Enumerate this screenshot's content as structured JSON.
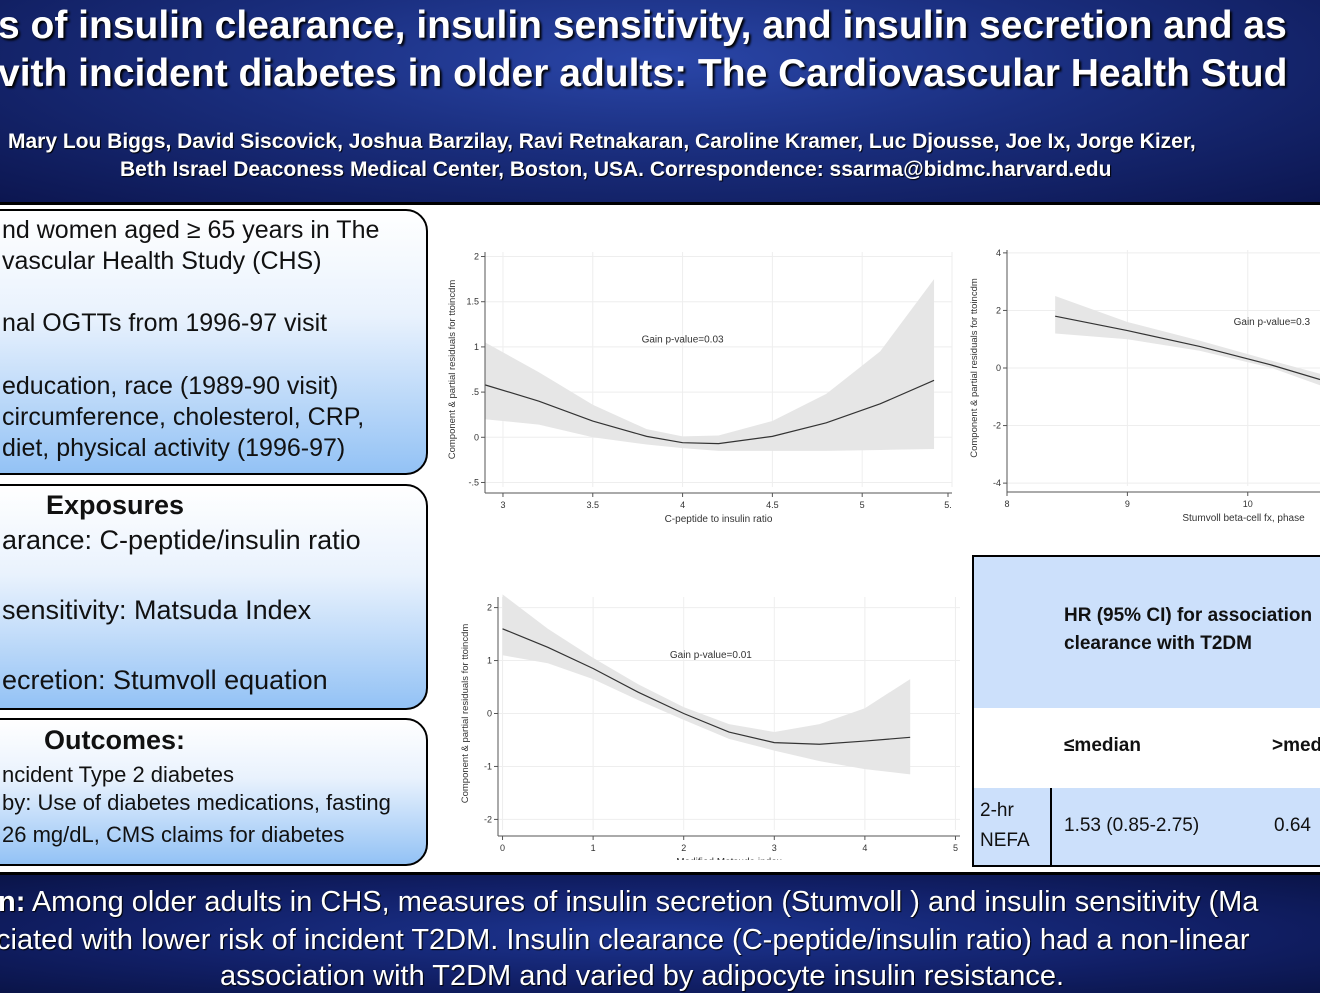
{
  "header": {
    "title_line1": "s of insulin clearance, insulin sensitivity, and insulin secretion and as",
    "title_line2": "vith incident diabetes in older adults: The Cardiovascular Health Stud",
    "authors": "Mary Lou Biggs, David Siscovick, Joshua Barzilay, Ravi Retnakaran, Caroline Kramer, Luc Djousse, Joe Ix, Jorge Kizer,",
    "affiliation": "Beth Israel Deaconess Medical Center, Boston, USA. Correspondence: ssarma@bidmc.harvard.edu"
  },
  "box1": {
    "lines": [
      "nd women aged ≥ 65 years in The",
      "vascular Health Study (CHS)",
      "nal OGTTs from 1996-97 visit",
      "education, race (1989-90 visit)",
      "circumference, cholesterol, CRP,",
      "diet, physical activity (1996-97)"
    ]
  },
  "box2": {
    "heading": "Exposures",
    "lines": [
      "arance: C-peptide/insulin ratio",
      "sensitivity: Matsuda Index",
      "ecretion: Stumvoll equation"
    ]
  },
  "box3": {
    "heading": "Outcomes:",
    "lines": [
      "ncident Type 2 diabetes",
      "by: Use of diabetes medications, fasting",
      "26 mg/dL, CMS claims for diabetes"
    ]
  },
  "chart_data": [
    {
      "type": "line",
      "xlabel": "C-peptide to insulin ratio",
      "ylabel": "Component & partial residuals for ttoincdm",
      "annotation": "Gain p-value=0.03",
      "x_ticks": [
        "3",
        "3.5",
        "4",
        "4.5",
        "5",
        "5."
      ],
      "y_ticks": [
        "-.5",
        "0",
        ".5",
        "1",
        "1.5",
        "2"
      ],
      "xlim": [
        2.9,
        5.5
      ],
      "ylim": [
        -0.55,
        2.05
      ],
      "x": [
        2.9,
        3.2,
        3.5,
        3.8,
        4.0,
        4.2,
        4.5,
        4.8,
        5.1,
        5.4
      ],
      "y": [
        0.58,
        0.4,
        0.18,
        0.01,
        -0.06,
        -0.07,
        0.01,
        0.16,
        0.37,
        0.63
      ],
      "ci_lower": [
        0.2,
        0.14,
        0.0,
        -0.08,
        -0.12,
        -0.15,
        -0.15,
        -0.15,
        -0.14,
        -0.13
      ],
      "ci_upper": [
        1.05,
        0.72,
        0.36,
        0.09,
        0.01,
        0.02,
        0.18,
        0.48,
        0.95,
        1.75
      ]
    },
    {
      "type": "line",
      "xlabel": "Stumvoll beta-cell fx, phase",
      "ylabel": "Component & partial residuals for ttoincdm",
      "annotation": "Gain p-value=0.3",
      "x_ticks": [
        "8",
        "9",
        "10"
      ],
      "y_ticks": [
        "-4",
        "-2",
        "0",
        "2",
        "4"
      ],
      "xlim": [
        8,
        10.6
      ],
      "ylim": [
        -4.1,
        4.1
      ],
      "x": [
        8.4,
        9.0,
        9.6,
        10.2,
        10.6
      ],
      "y": [
        1.8,
        1.3,
        0.75,
        0.1,
        -0.4
      ],
      "ci_lower": [
        1.2,
        1.0,
        0.6,
        0.0,
        -0.6
      ],
      "ci_upper": [
        2.5,
        1.6,
        0.95,
        0.25,
        -0.2
      ]
    },
    {
      "type": "line",
      "xlabel": "Modified Matsuda index",
      "ylabel": "Component & partial residuals for ttoincdm",
      "annotation": "Gain p-value=0.01",
      "x_ticks": [
        "0",
        "1",
        "2",
        "3",
        "4",
        "5"
      ],
      "y_ticks": [
        "-2",
        "-1",
        "0",
        "1",
        "2"
      ],
      "xlim": [
        -0.05,
        5.05
      ],
      "ylim": [
        -2.2,
        2.2
      ],
      "x": [
        0.0,
        0.5,
        1.0,
        1.5,
        2.0,
        2.5,
        3.0,
        3.5,
        4.0,
        4.5
      ],
      "y": [
        1.6,
        1.25,
        0.85,
        0.4,
        0.0,
        -0.35,
        -0.55,
        -0.58,
        -0.52,
        -0.45
      ],
      "ci_lower": [
        1.1,
        0.95,
        0.65,
        0.25,
        -0.12,
        -0.48,
        -0.7,
        -0.9,
        -1.05,
        -1.15
      ],
      "ci_upper": [
        2.25,
        1.6,
        1.05,
        0.55,
        0.12,
        -0.2,
        -0.35,
        -0.2,
        0.1,
        0.65
      ]
    }
  ],
  "table": {
    "header_line1": "HR (95% CI) for association",
    "header_line2": "clearance with T2DM",
    "col1": "≤median",
    "col2": ">med",
    "row_label_1": "2-hr",
    "row_label_2": "NEFA",
    "val1": "1.53 (0.85-2.75)",
    "val2": "0.64"
  },
  "footer": {
    "line1_bold": "n:",
    "line1": " Among older adults in CHS, measures of insulin secretion (Stumvoll ) and insulin sensitivity (Ma",
    "line2": "ciated with lower risk of incident T2DM. Insulin clearance (C-peptide/insulin ratio) had a non-linear",
    "line3": "association with T2DM and varied by adipocyte insulin resistance."
  },
  "colors": {
    "header_blue": "#1a2e7e",
    "box_blue": "#93c2f5",
    "table_blue": "#cce0fb"
  }
}
